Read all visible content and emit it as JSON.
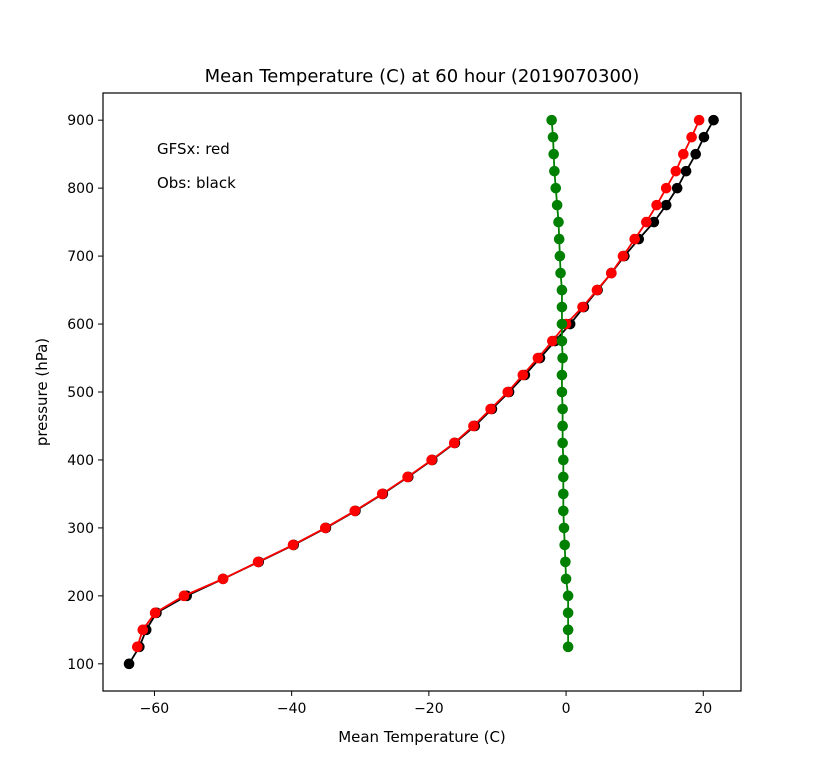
{
  "chart_data": {
    "type": "line",
    "title": "Mean Temperature (C) at 60 hour (2019070300)",
    "xlabel": "Mean Temperature (C)",
    "ylabel": "pressure (hPa)",
    "xlim": [
      -67.5,
      25.5
    ],
    "ylim": [
      60,
      940
    ],
    "xticks": [
      -60,
      -40,
      -20,
      0,
      20
    ],
    "xtick_labels": [
      "−60",
      "−40",
      "−20",
      "0",
      "20"
    ],
    "yticks": [
      100,
      200,
      300,
      400,
      500,
      600,
      700,
      800,
      900
    ],
    "ytick_labels": [
      "100",
      "200",
      "300",
      "400",
      "500",
      "600",
      "700",
      "800",
      "900"
    ],
    "grid": false,
    "annotations": [
      "GFSx: red",
      "Obs: black"
    ],
    "series": [
      {
        "color": "#000000",
        "points": [
          [
            -63.7,
            100
          ],
          [
            -62.2,
            125
          ],
          [
            -61.2,
            150
          ],
          [
            -59.7,
            175
          ],
          [
            -55.3,
            200
          ],
          [
            -50.0,
            225
          ],
          [
            -44.8,
            250
          ],
          [
            -39.7,
            275
          ],
          [
            -35.0,
            300
          ],
          [
            -30.7,
            325
          ],
          [
            -26.7,
            350
          ],
          [
            -23.0,
            375
          ],
          [
            -19.5,
            400
          ],
          [
            -16.2,
            425
          ],
          [
            -13.3,
            450
          ],
          [
            -10.8,
            475
          ],
          [
            -8.3,
            500
          ],
          [
            -6.0,
            525
          ],
          [
            -3.8,
            550
          ],
          [
            -1.6,
            575
          ],
          [
            0.6,
            600
          ],
          [
            2.6,
            625
          ],
          [
            4.6,
            650
          ],
          [
            6.6,
            675
          ],
          [
            8.5,
            700
          ],
          [
            10.6,
            725
          ],
          [
            12.8,
            750
          ],
          [
            14.6,
            775
          ],
          [
            16.2,
            800
          ],
          [
            17.5,
            825
          ],
          [
            18.9,
            850
          ],
          [
            20.1,
            875
          ],
          [
            21.5,
            900
          ]
        ]
      },
      {
        "color": "#ff0000",
        "points": [
          [
            -62.5,
            125
          ],
          [
            -61.7,
            150
          ],
          [
            -59.9,
            175
          ],
          [
            -55.7,
            200
          ],
          [
            -50.0,
            225
          ],
          [
            -44.9,
            250
          ],
          [
            -39.8,
            275
          ],
          [
            -35.1,
            300
          ],
          [
            -30.8,
            325
          ],
          [
            -26.8,
            350
          ],
          [
            -23.1,
            375
          ],
          [
            -19.6,
            400
          ],
          [
            -16.3,
            425
          ],
          [
            -13.5,
            450
          ],
          [
            -11.0,
            475
          ],
          [
            -8.5,
            500
          ],
          [
            -6.3,
            525
          ],
          [
            -4.1,
            550
          ],
          [
            -2.0,
            575
          ],
          [
            0.0,
            600
          ],
          [
            2.4,
            625
          ],
          [
            4.5,
            650
          ],
          [
            6.6,
            675
          ],
          [
            8.3,
            700
          ],
          [
            10.0,
            725
          ],
          [
            11.7,
            750
          ],
          [
            13.2,
            775
          ],
          [
            14.6,
            800
          ],
          [
            16.0,
            825
          ],
          [
            17.1,
            850
          ],
          [
            18.3,
            875
          ],
          [
            19.4,
            900
          ]
        ]
      },
      {
        "color": "#008000",
        "points": [
          [
            0.3,
            125
          ],
          [
            0.3,
            150
          ],
          [
            0.3,
            175
          ],
          [
            0.3,
            200
          ],
          [
            0.0,
            225
          ],
          [
            -0.1,
            250
          ],
          [
            -0.2,
            275
          ],
          [
            -0.3,
            300
          ],
          [
            -0.4,
            325
          ],
          [
            -0.4,
            350
          ],
          [
            -0.4,
            375
          ],
          [
            -0.4,
            400
          ],
          [
            -0.5,
            425
          ],
          [
            -0.5,
            450
          ],
          [
            -0.5,
            475
          ],
          [
            -0.6,
            500
          ],
          [
            -0.6,
            525
          ],
          [
            -0.5,
            550
          ],
          [
            -0.6,
            575
          ],
          [
            -0.6,
            600
          ],
          [
            -0.6,
            625
          ],
          [
            -0.6,
            650
          ],
          [
            -0.8,
            675
          ],
          [
            -0.9,
            700
          ],
          [
            -1.0,
            725
          ],
          [
            -1.1,
            750
          ],
          [
            -1.3,
            775
          ],
          [
            -1.5,
            800
          ],
          [
            -1.7,
            825
          ],
          [
            -1.8,
            850
          ],
          [
            -1.9,
            875
          ],
          [
            -2.1,
            900
          ]
        ]
      }
    ]
  }
}
